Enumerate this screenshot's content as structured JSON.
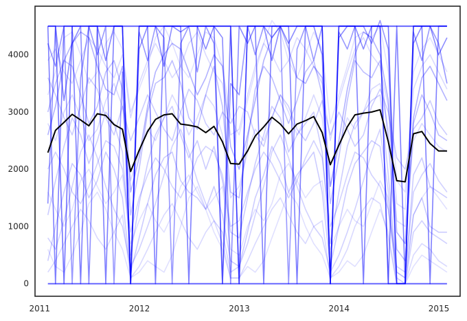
{
  "chart_data": {
    "type": "line",
    "title": "",
    "xlabel": "",
    "ylabel": "",
    "xlim": [
      "2010-12-15",
      "2015-03-20"
    ],
    "ylim": [
      -220,
      4850
    ],
    "grid": false,
    "legend": "none",
    "x_ticks": [
      {
        "value": "2011-01-01",
        "label": "2011"
      },
      {
        "value": "2012-01-01",
        "label": "2012"
      },
      {
        "value": "2013-01-01",
        "label": "2013"
      },
      {
        "value": "2014-01-01",
        "label": "2014"
      },
      {
        "value": "2015-01-01",
        "label": "2015"
      }
    ],
    "y_ticks": [
      {
        "value": 0,
        "label": "0"
      },
      {
        "value": 1000,
        "label": "1000"
      },
      {
        "value": 2000,
        "label": "2000"
      },
      {
        "value": 3000,
        "label": "3000"
      },
      {
        "value": 4000,
        "label": "4000"
      }
    ],
    "x": [
      "2011-01-31",
      "2011-02-28",
      "2011-03-31",
      "2011-04-30",
      "2011-05-31",
      "2011-06-30",
      "2011-07-31",
      "2011-08-31",
      "2011-09-30",
      "2011-10-31",
      "2011-11-30",
      "2011-12-31",
      "2012-01-31",
      "2012-02-29",
      "2012-03-31",
      "2012-04-30",
      "2012-05-31",
      "2012-06-30",
      "2012-07-31",
      "2012-08-31",
      "2012-09-30",
      "2012-10-31",
      "2012-11-30",
      "2012-12-31",
      "2013-01-31",
      "2013-02-28",
      "2013-03-31",
      "2013-04-30",
      "2013-05-31",
      "2013-06-30",
      "2013-07-31",
      "2013-08-31",
      "2013-09-30",
      "2013-10-31",
      "2013-11-30",
      "2013-12-31",
      "2014-01-31",
      "2014-02-28",
      "2014-03-31",
      "2014-04-30",
      "2014-05-31",
      "2014-06-30",
      "2014-07-31",
      "2014-08-31",
      "2014-09-30",
      "2014-10-31",
      "2014-11-30",
      "2014-12-31",
      "2015-01-31"
    ],
    "series": [
      {
        "role": "mean",
        "color": "#000000",
        "values": [
          2290,
          2680,
          2820,
          2960,
          2860,
          2760,
          2970,
          2940,
          2780,
          2700,
          1960,
          2330,
          2660,
          2870,
          2950,
          2970,
          2790,
          2770,
          2740,
          2640,
          2750,
          2480,
          2100,
          2090,
          2320,
          2580,
          2740,
          2910,
          2790,
          2620,
          2790,
          2850,
          2920,
          2640,
          2080,
          2420,
          2740,
          2950,
          2980,
          3000,
          3040,
          2480,
          1800,
          1780,
          2620,
          2660,
          2450,
          2320,
          2320
        ]
      },
      {
        "role": "bound",
        "color": "#0000ff",
        "opacity": 0.6,
        "values": [
          4500,
          4500,
          4500,
          4500,
          4500,
          4500,
          4500,
          4500,
          4500,
          4500,
          4500,
          4500,
          4500,
          4500,
          4500,
          4500,
          4500,
          4500,
          4500,
          4500,
          4500,
          4500,
          4500,
          4500,
          4500,
          4500,
          4500,
          4500,
          4500,
          4500,
          4500,
          4500,
          4500,
          4500,
          4500,
          4500,
          4500,
          4500,
          4500,
          4500,
          4500,
          4500,
          4500,
          4500,
          4500,
          4500,
          4500,
          4500,
          4500
        ]
      },
      {
        "role": "bound",
        "color": "#0000ff",
        "opacity": 0.6,
        "values": [
          0,
          0,
          0,
          0,
          0,
          0,
          0,
          0,
          0,
          0,
          0,
          0,
          0,
          0,
          0,
          0,
          0,
          0,
          0,
          0,
          0,
          0,
          0,
          0,
          0,
          0,
          0,
          0,
          0,
          0,
          0,
          0,
          0,
          0,
          0,
          0,
          0,
          0,
          0,
          0,
          0,
          0,
          0,
          0,
          0,
          0,
          0,
          0,
          0
        ]
      },
      {
        "role": "sample",
        "color": "#0000ff",
        "opacity": 0.55,
        "values": [
          4500,
          4500,
          0,
          4500,
          4500,
          4500,
          4500,
          4500,
          4500,
          4500,
          0,
          4500,
          4500,
          4500,
          4500,
          4500,
          4500,
          4500,
          4500,
          4500,
          4500,
          4500,
          4500,
          0,
          4500,
          4500,
          4500,
          4500,
          4500,
          4500,
          4500,
          4500,
          4500,
          4500,
          0,
          4500,
          4500,
          4500,
          4500,
          4500,
          4500,
          4500,
          0,
          0,
          4500,
          4500,
          4500,
          4500,
          4500
        ]
      },
      {
        "role": "sample",
        "color": "#0000ff",
        "opacity": 0.5,
        "values": [
          4500,
          0,
          4500,
          4500,
          0,
          4500,
          4500,
          0,
          4500,
          4500,
          0,
          4500,
          4500,
          0,
          4500,
          4500,
          4500,
          0,
          4500,
          4500,
          4500,
          0,
          4500,
          0,
          4500,
          4500,
          0,
          4500,
          4500,
          4500,
          0,
          4500,
          4500,
          4500,
          0,
          4500,
          4500,
          4500,
          0,
          4500,
          4500,
          0,
          4500,
          0,
          4500,
          4500,
          0,
          4500,
          4500
        ]
      },
      {
        "role": "sample",
        "color": "#0000ff",
        "opacity": 0.45,
        "values": [
          1400,
          4500,
          3200,
          4200,
          4500,
          0,
          4500,
          3900,
          4500,
          4500,
          0,
          4100,
          4500,
          4500,
          3800,
          4500,
          4400,
          4500,
          4500,
          4100,
          4500,
          4300,
          0,
          4500,
          4200,
          4500,
          4500,
          3900,
          4500,
          4200,
          4500,
          4500,
          4500,
          4000,
          0,
          4300,
          4500,
          4500,
          4100,
          4500,
          4500,
          0,
          0,
          0,
          4200,
          4500,
          4500,
          4000,
          4300
        ]
      },
      {
        "role": "sample",
        "color": "#0000ff",
        "opacity": 0.4,
        "values": [
          4200,
          3800,
          4500,
          0,
          3600,
          4500,
          4000,
          4500,
          0,
          3700,
          0,
          4400,
          3900,
          4500,
          4300,
          0,
          4200,
          4500,
          3700,
          4500,
          4200,
          0,
          3500,
          3300,
          4500,
          4000,
          4500,
          4300,
          4500,
          0,
          4100,
          4500,
          3900,
          4500,
          0,
          4400,
          4100,
          4500,
          4500,
          4200,
          4600,
          4100,
          0,
          0,
          4400,
          3900,
          4500,
          4200,
          3500
        ]
      },
      {
        "role": "sample",
        "color": "#0000ff",
        "opacity": 0.3,
        "values": [
          2600,
          3100,
          3900,
          4200,
          4400,
          4300,
          3800,
          3400,
          3300,
          3800,
          1600,
          2200,
          3100,
          3700,
          4000,
          4200,
          4100,
          3700,
          3300,
          3600,
          4000,
          3800,
          2400,
          2000,
          2600,
          3200,
          3900,
          4300,
          4500,
          4100,
          3600,
          3500,
          3800,
          3600,
          1700,
          2500,
          3400,
          4000,
          4400,
          4300,
          4000,
          3200,
          900,
          700,
          2900,
          3600,
          3800,
          3500,
          3200
        ]
      },
      {
        "role": "sample",
        "color": "#0000ff",
        "opacity": 0.25,
        "values": [
          3000,
          3500,
          3900,
          3800,
          3300,
          2800,
          3100,
          3700,
          3900,
          3400,
          1200,
          2000,
          3000,
          3500,
          3600,
          3900,
          3500,
          2900,
          2700,
          3300,
          3800,
          3100,
          1600,
          1500,
          2500,
          3400,
          3800,
          3600,
          3200,
          2800,
          3200,
          3700,
          3900,
          3300,
          1400,
          2200,
          3200,
          3900,
          3700,
          3600,
          3900,
          2500,
          600,
          400,
          2800,
          3300,
          3000,
          2600,
          2500
        ]
      },
      {
        "role": "sample",
        "color": "#0000ff",
        "opacity": 0.2,
        "values": [
          1200,
          1800,
          2400,
          2900,
          2600,
          2100,
          2500,
          3000,
          2800,
          2300,
          500,
          1400,
          2100,
          2600,
          2900,
          3100,
          2600,
          2200,
          2500,
          2000,
          2400,
          1800,
          900,
          800,
          1500,
          2100,
          2600,
          3100,
          2900,
          2300,
          2600,
          2800,
          3000,
          2300,
          700,
          1600,
          2400,
          2800,
          3000,
          3200,
          3300,
          1900,
          200,
          100,
          1900,
          2200,
          1700,
          1600,
          1500
        ]
      },
      {
        "role": "sample",
        "color": "#0000ff",
        "opacity": 0.2,
        "values": [
          400,
          1000,
          1600,
          2100,
          1900,
          1500,
          1800,
          2300,
          2000,
          1500,
          200,
          800,
          1400,
          1900,
          2200,
          2300,
          1800,
          1600,
          1500,
          1300,
          1700,
          1200,
          400,
          300,
          900,
          1500,
          1900,
          2400,
          2100,
          1600,
          1900,
          2100,
          2300,
          1600,
          300,
          1000,
          1700,
          2100,
          2300,
          2500,
          2400,
          1300,
          100,
          0,
          1200,
          1500,
          1000,
          900,
          900
        ]
      },
      {
        "role": "sample",
        "color": "#0000ff",
        "opacity": 0.2,
        "values": [
          3600,
          3300,
          2900,
          2600,
          3100,
          3600,
          3400,
          2900,
          2600,
          3100,
          2500,
          2900,
          3300,
          3000,
          2700,
          2500,
          3000,
          3400,
          3200,
          2800,
          2600,
          3000,
          2800,
          3100,
          3000,
          2600,
          2400,
          2900,
          3300,
          3100,
          2700,
          2500,
          2800,
          3200,
          2600,
          3000,
          2700,
          2400,
          2600,
          3100,
          3400,
          3000,
          2200,
          2000,
          2700,
          2900,
          3200,
          2800,
          2600
        ]
      },
      {
        "role": "sample",
        "color": "#0000ff",
        "opacity": 0.18,
        "values": [
          800,
          600,
          1100,
          1700,
          2300,
          2600,
          2200,
          1700,
          1300,
          1000,
          300,
          600,
          1000,
          1400,
          1900,
          2400,
          2700,
          2300,
          1800,
          1400,
          1100,
          900,
          200,
          300,
          700,
          1200,
          1700,
          2300,
          2600,
          2200,
          1700,
          1300,
          1000,
          800,
          200,
          500,
          900,
          1300,
          1800,
          2300,
          2700,
          1600,
          0,
          0,
          900,
          1100,
          900,
          800,
          700
        ]
      },
      {
        "role": "sample",
        "color": "#0000ff",
        "opacity": 0.18,
        "values": [
          2000,
          2300,
          2000,
          1600,
          1400,
          1700,
          2100,
          2500,
          2400,
          2000,
          900,
          1500,
          1900,
          2200,
          2000,
          1700,
          1500,
          1800,
          2200,
          2400,
          2300,
          1900,
          1000,
          1100,
          1600,
          2000,
          2300,
          2100,
          1800,
          1500,
          1800,
          2200,
          2500,
          2200,
          1000,
          1400,
          1900,
          2300,
          2200,
          1900,
          1700,
          1300,
          300,
          200,
          1600,
          1900,
          2100,
          1800,
          1600
        ]
      },
      {
        "role": "sample",
        "color": "#0000ff",
        "opacity": 0.15,
        "values": [
          3900,
          4100,
          3700,
          3500,
          3900,
          4300,
          4100,
          3800,
          3600,
          4000,
          2900,
          3500,
          3900,
          4200,
          3900,
          3600,
          3800,
          4200,
          4400,
          4000,
          3700,
          3500,
          2600,
          2700,
          3300,
          3800,
          4200,
          4000,
          3700,
          3900,
          4300,
          4100,
          3800,
          3500,
          2500,
          3200,
          3700,
          4100,
          4300,
          4000,
          3800,
          3100,
          1400,
          1300,
          3400,
          3800,
          4000,
          3700,
          3400
        ]
      },
      {
        "role": "sample",
        "color": "#0000ff",
        "opacity": 0.15,
        "values": [
          200,
          400,
          700,
          1000,
          1300,
          1100,
          800,
          600,
          900,
          1200,
          100,
          300,
          600,
          900,
          1200,
          1400,
          1100,
          800,
          600,
          900,
          1100,
          700,
          100,
          100,
          400,
          700,
          1000,
          1300,
          1500,
          1200,
          900,
          700,
          1000,
          1100,
          100,
          300,
          600,
          1000,
          1300,
          1500,
          1400,
          800,
          0,
          0,
          500,
          700,
          600,
          400,
          300
        ]
      },
      {
        "role": "sample",
        "color": "#0000ff",
        "opacity": 0.15,
        "values": [
          2800,
          2500,
          3000,
          3300,
          2900,
          2500,
          2700,
          3200,
          3500,
          3100,
          1800,
          2300,
          2700,
          2500,
          2900,
          3300,
          3000,
          2600,
          2900,
          3300,
          3100,
          2600,
          1500,
          1700,
          2300,
          2700,
          2500,
          2900,
          3300,
          3000,
          2600,
          2900,
          3300,
          2900,
          1700,
          2400,
          2900,
          2700,
          3000,
          3400,
          3500,
          2700,
          1100,
          1000,
          2500,
          2800,
          2600,
          2400,
          2300
        ]
      },
      {
        "role": "sample",
        "color": "#0000ff",
        "opacity": 0.12,
        "values": [
          1600,
          1300,
          1000,
          1300,
          1800,
          2000,
          1700,
          1400,
          1600,
          1900,
          700,
          1100,
          1400,
          1100,
          900,
          1200,
          1700,
          1900,
          1600,
          1300,
          1500,
          1700,
          600,
          500,
          1000,
          1300,
          1100,
          1400,
          1900,
          2100,
          1800,
          1500,
          1700,
          1800,
          600,
          1000,
          1300,
          1100,
          1000,
          1400,
          1800,
          1500,
          200,
          100,
          1200,
          1500,
          1700,
          1500,
          1300
        ]
      },
      {
        "role": "sample",
        "color": "#0000ff",
        "opacity": 0.12,
        "values": [
          3300,
          3700,
          4300,
          4400,
          4000,
          3500,
          3700,
          4200,
          4400,
          4100,
          3000,
          3400,
          3800,
          4300,
          4500,
          4200,
          3800,
          3600,
          4000,
          4400,
          4300,
          3800,
          2900,
          2600,
          3200,
          3700,
          4200,
          4600,
          4400,
          3900,
          3600,
          4000,
          4400,
          4100,
          2800,
          3300,
          3800,
          4300,
          4400,
          4300,
          4500,
          3700,
          1800,
          1600,
          3700,
          4100,
          4300,
          4000,
          3700
        ]
      },
      {
        "role": "sample",
        "color": "#0000ff",
        "opacity": 0.12,
        "values": [
          600,
          300,
          200,
          500,
          900,
          1400,
          1600,
          1300,
          900,
          600,
          100,
          200,
          400,
          300,
          200,
          500,
          1000,
          1500,
          1700,
          1300,
          900,
          600,
          100,
          100,
          300,
          200,
          400,
          800,
          1200,
          1600,
          1400,
          1000,
          700,
          500,
          100,
          200,
          400,
          300,
          500,
          900,
          1300,
          900,
          0,
          0,
          300,
          500,
          400,
          300,
          200
        ]
      }
    ]
  }
}
